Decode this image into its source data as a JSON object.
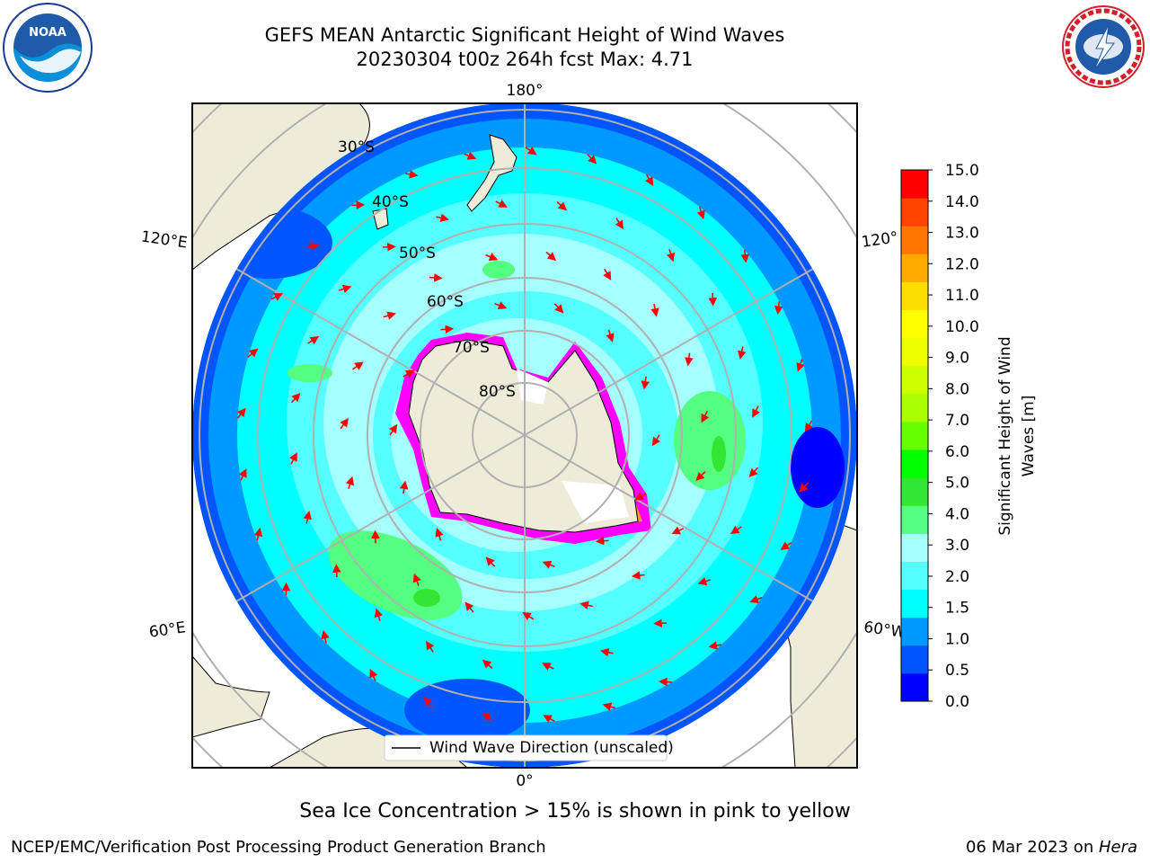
{
  "header": {
    "title_line1": "GEFS MEAN Antarctic Significant Height of Wind Waves",
    "title_line2": "20230304 t00z 264h fcst   Max: 4.71"
  },
  "logos": {
    "left": "noaa-logo",
    "right": "national-weather-service-logo"
  },
  "map": {
    "projection": "south-polar-stereographic",
    "longitude_labels": [
      "180°",
      "120°E",
      "120°",
      "60°E",
      "60°W",
      "0°"
    ],
    "latitude_labels": [
      "30°S",
      "40°S",
      "50°S",
      "60°S",
      "70°S",
      "80°S"
    ],
    "legend_entry": "Wind Wave Direction (unscaled)",
    "arrow_color": "#ff0000",
    "land_color": "#eeecd9",
    "sea_ice_colors": [
      "#ff00ff",
      "#ff8000",
      "#ffff00"
    ]
  },
  "colorbar": {
    "label": "Significant Height of Wind Waves [m]",
    "label_line1": "Significant Height of Wind",
    "label_line2": "Waves [m]",
    "ticks": [
      "0.0",
      "0.5",
      "1.0",
      "1.5",
      "2.0",
      "3.0",
      "4.0",
      "5.0",
      "6.0",
      "7.0",
      "8.0",
      "9.0",
      "10.0",
      "11.0",
      "12.0",
      "13.0",
      "14.0",
      "15.0"
    ],
    "colors": [
      "#0000ff",
      "#0055ff",
      "#0099ff",
      "#00ffff",
      "#55ffff",
      "#a6ffff",
      "#55ff80",
      "#33e633",
      "#00ff00",
      "#66ff00",
      "#aaff00",
      "#ccff00",
      "#eeff00",
      "#ffff00",
      "#ffdd00",
      "#ffaa00",
      "#ff7700",
      "#ff4400",
      "#ff0000"
    ]
  },
  "footer": {
    "note": "Sea Ice Concentration > 15% is shown in pink to yellow",
    "left_credit": "NCEP/EMC/Verification Post Processing Product Generation Branch",
    "right_credit_date": "06 Mar 2023 on ",
    "right_credit_system": "Hera"
  }
}
